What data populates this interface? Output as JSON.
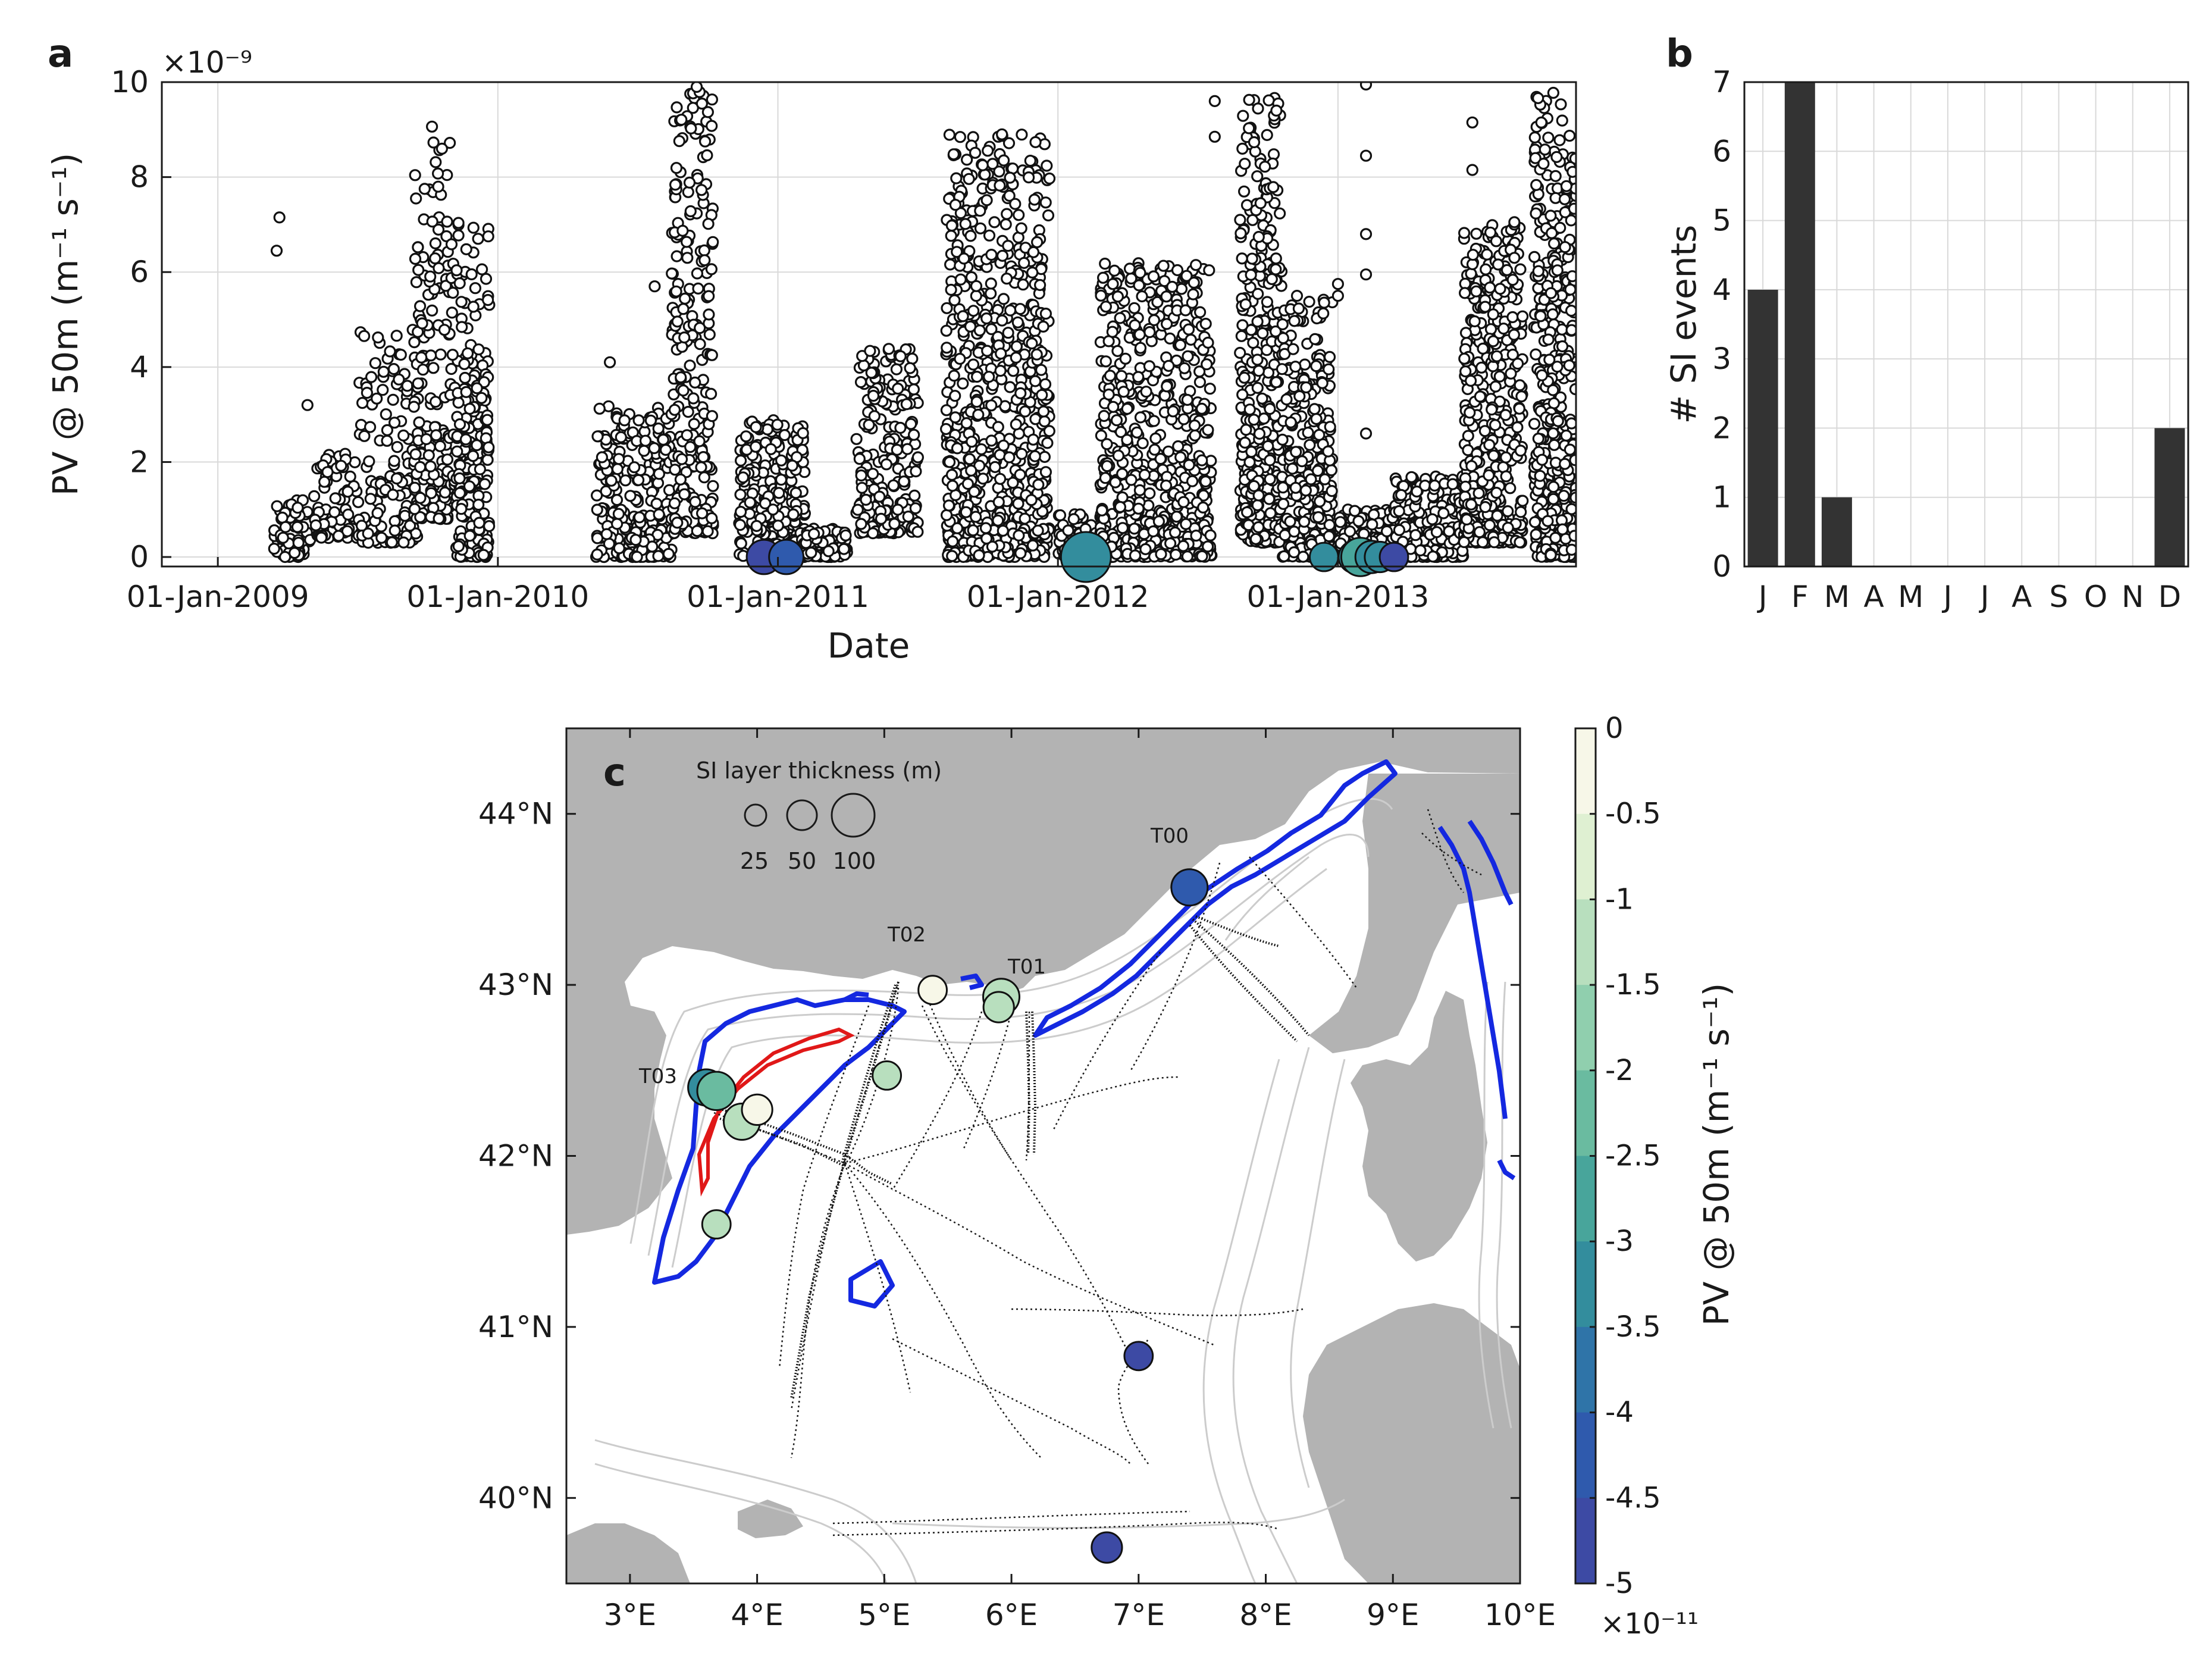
{
  "chart_data": [
    {
      "panel": "a",
      "type": "scatter",
      "xlabel": "Date",
      "ylabel": "PV @ 50m (m⁻¹ s⁻¹)",
      "y_multiplier": "×10⁻⁹",
      "x_ticks": [
        "01-Jan-2009",
        "01-Jan-2010",
        "01-Jan-2011",
        "01-Jan-2012",
        "01-Jan-2013"
      ],
      "x_range_years": [
        2008.8,
        2013.85
      ],
      "y_ticks": [
        0,
        2,
        4,
        6,
        8,
        10
      ],
      "ylim": [
        -0.2,
        10
      ],
      "grid": true,
      "clusters": [
        {
          "start": 2009.2,
          "end": 2009.33,
          "min": 0.0,
          "max": 1.2,
          "n": 70
        },
        {
          "start": 2009.34,
          "end": 2009.5,
          "min": 0.4,
          "max": 2.2,
          "n": 70
        },
        {
          "start": 2009.5,
          "end": 2009.72,
          "min": 0.3,
          "max": 4.8,
          "n": 140
        },
        {
          "start": 2009.7,
          "end": 2009.83,
          "min": 0.8,
          "max": 9.2,
          "n": 160
        },
        {
          "start": 2009.83,
          "end": 2009.97,
          "min": 1.5,
          "max": 7.3,
          "n": 120
        },
        {
          "start": 2009.85,
          "end": 2009.97,
          "min": 0.0,
          "max": 3.8,
          "n": 120
        },
        {
          "start": 2010.35,
          "end": 2010.62,
          "min": 0.0,
          "max": 3.2,
          "n": 260
        },
        {
          "start": 2010.62,
          "end": 2010.77,
          "min": 0.5,
          "max": 9.8,
          "n": 240
        },
        {
          "start": 2010.86,
          "end": 2011.1,
          "min": 0.0,
          "max": 2.9,
          "n": 260
        },
        {
          "start": 2011.1,
          "end": 2011.25,
          "min": 0.0,
          "max": 0.6,
          "n": 90
        },
        {
          "start": 2011.28,
          "end": 2011.5,
          "min": 0.5,
          "max": 4.4,
          "n": 220
        },
        {
          "start": 2011.6,
          "end": 2011.97,
          "min": 0.0,
          "max": 8.9,
          "n": 700
        },
        {
          "start": 2012.0,
          "end": 2012.15,
          "min": 0.0,
          "max": 0.9,
          "n": 80
        },
        {
          "start": 2012.15,
          "end": 2012.55,
          "min": 0.0,
          "max": 6.2,
          "n": 600
        },
        {
          "start": 2012.65,
          "end": 2012.8,
          "min": 0.3,
          "max": 9.8,
          "n": 380
        },
        {
          "start": 2012.8,
          "end": 2012.98,
          "min": 0.0,
          "max": 5.5,
          "n": 300
        },
        {
          "start": 2013.0,
          "end": 2013.2,
          "min": 0.0,
          "max": 1.0,
          "n": 180
        },
        {
          "start": 2013.2,
          "end": 2013.45,
          "min": 0.0,
          "max": 1.7,
          "n": 220
        },
        {
          "start": 2013.45,
          "end": 2013.66,
          "min": 0.3,
          "max": 7.0,
          "n": 420
        },
        {
          "start": 2013.7,
          "end": 2013.85,
          "min": 0.0,
          "max": 9.9,
          "n": 420
        }
      ],
      "outliers": [
        {
          "t": 2009.22,
          "v": 7.15
        },
        {
          "t": 2009.21,
          "v": 6.45
        },
        {
          "t": 2009.32,
          "v": 3.2
        },
        {
          "t": 2010.4,
          "v": 4.1
        },
        {
          "t": 2010.56,
          "v": 5.7
        },
        {
          "t": 2010.71,
          "v": 9.9
        },
        {
          "t": 2011.5,
          "v": 2.1
        },
        {
          "t": 2011.8,
          "v": 8.9
        },
        {
          "t": 2012.4,
          "v": 4.6
        },
        {
          "t": 2012.56,
          "v": 9.6
        },
        {
          "t": 2012.56,
          "v": 8.85
        },
        {
          "t": 2012.78,
          "v": 9.4
        },
        {
          "t": 2013.0,
          "v": 5.75
        },
        {
          "t": 2013.0,
          "v": 5.5
        },
        {
          "t": 2013.1,
          "v": 9.95
        },
        {
          "t": 2013.1,
          "v": 8.45
        },
        {
          "t": 2013.1,
          "v": 6.8
        },
        {
          "t": 2013.1,
          "v": 5.95
        },
        {
          "t": 2013.1,
          "v": 2.6
        },
        {
          "t": 2013.48,
          "v": 9.15
        },
        {
          "t": 2013.48,
          "v": 8.15
        },
        {
          "t": 2013.63,
          "v": 7.0
        },
        {
          "t": 2013.63,
          "v": 6.3
        },
        {
          "t": 2013.63,
          "v": 7.05
        }
      ],
      "si_events": [
        {
          "t": 2010.95,
          "pv": -4.7,
          "thickness_m": 45
        },
        {
          "t": 2011.03,
          "pv": -4.3,
          "thickness_m": 45
        },
        {
          "t": 2012.1,
          "pv": -3.2,
          "thickness_m": 85
        },
        {
          "t": 2012.95,
          "pv": -3.1,
          "thickness_m": 30
        },
        {
          "t": 2013.06,
          "pv": -3.0,
          "thickness_m": 40
        },
        {
          "t": 2013.08,
          "pv": -2.9,
          "thickness_m": 55
        },
        {
          "t": 2013.12,
          "pv": -3.1,
          "thickness_m": 40
        },
        {
          "t": 2013.15,
          "pv": -3.4,
          "thickness_m": 35
        },
        {
          "t": 2013.2,
          "pv": -4.5,
          "thickness_m": 30
        }
      ]
    },
    {
      "panel": "b",
      "type": "bar",
      "ylabel": "# SI events",
      "categories": [
        "J",
        "F",
        "M",
        "A",
        "M",
        "J",
        "J",
        "A",
        "S",
        "O",
        "N",
        "D"
      ],
      "values": [
        4,
        7,
        1,
        0,
        0,
        0,
        0,
        0,
        0,
        0,
        0,
        2
      ],
      "ylim": [
        0,
        7
      ],
      "y_ticks": [
        0,
        1,
        2,
        3,
        4,
        5,
        6,
        7
      ],
      "grid": true,
      "bar_color": "#333333"
    },
    {
      "panel": "c",
      "type": "scatter",
      "subtype": "map",
      "lon_range": [
        2.5,
        10.0
      ],
      "lat_range": [
        39.5,
        44.5
      ],
      "x_ticks": [
        "3°E",
        "4°E",
        "5°E",
        "6°E",
        "7°E",
        "8°E",
        "9°E",
        "10°E"
      ],
      "y_ticks": [
        "40°N",
        "41°N",
        "42°N",
        "43°N",
        "44°N"
      ],
      "legend_title": "SI layer thickness (m)",
      "legend_sizes": [
        25,
        50,
        100
      ],
      "transects": [
        {
          "name": "T00",
          "lon": 7.0,
          "lat": 43.8
        },
        {
          "name": "T01",
          "lon": 6.05,
          "lat": 43.1
        },
        {
          "name": "T02",
          "lon": 5.15,
          "lat": 43.3
        },
        {
          "name": "T03",
          "lon": 3.2,
          "lat": 42.5
        }
      ],
      "events": [
        {
          "lon": 7.4,
          "lat": 43.57,
          "pv": -4.0,
          "thickness_m": 50
        },
        {
          "lon": 5.38,
          "lat": 42.97,
          "pv": -0.3,
          "thickness_m": 30
        },
        {
          "lon": 5.92,
          "lat": 42.93,
          "pv": -1.4,
          "thickness_m": 50
        },
        {
          "lon": 5.9,
          "lat": 42.87,
          "pv": -1.2,
          "thickness_m": 35
        },
        {
          "lon": 5.02,
          "lat": 42.47,
          "pv": -1.4,
          "thickness_m": 30
        },
        {
          "lon": 3.6,
          "lat": 42.4,
          "pv": -3.1,
          "thickness_m": 50
        },
        {
          "lon": 3.68,
          "lat": 42.38,
          "pv": -2.4,
          "thickness_m": 55
        },
        {
          "lon": 3.88,
          "lat": 42.2,
          "pv": -1.4,
          "thickness_m": 50
        },
        {
          "lon": 4.0,
          "lat": 42.27,
          "pv": -0.3,
          "thickness_m": 35
        },
        {
          "lon": 3.68,
          "lat": 41.6,
          "pv": -1.3,
          "thickness_m": 30
        },
        {
          "lon": 7.0,
          "lat": 40.83,
          "pv": -4.6,
          "thickness_m": 30
        },
        {
          "lon": 6.75,
          "lat": 39.71,
          "pv": -4.7,
          "thickness_m": 35
        }
      ],
      "colorbar": {
        "label": "PV @ 50m (m⁻¹ s⁻¹)",
        "multiplier": "×10⁻¹¹",
        "range": [
          -5,
          0
        ],
        "ticks": [
          "0",
          "-0.5",
          "-1",
          "-1.5",
          "-2",
          "-2.5",
          "-3",
          "-3.5",
          "-4",
          "-4.5",
          "-5"
        ],
        "colors": [
          "#f7f7e8",
          "#dff0d2",
          "#b8dfbe",
          "#90cfae",
          "#6abba0",
          "#48a59b",
          "#338d9d",
          "#2f74a8",
          "#2f5aad",
          "#3d4aa4",
          "#5445a0"
        ]
      }
    }
  ],
  "labels": {
    "panel_a": "a",
    "panel_b": "b",
    "panel_c": "c",
    "legend_25": "25",
    "legend_50": "50",
    "legend_100": "100"
  }
}
